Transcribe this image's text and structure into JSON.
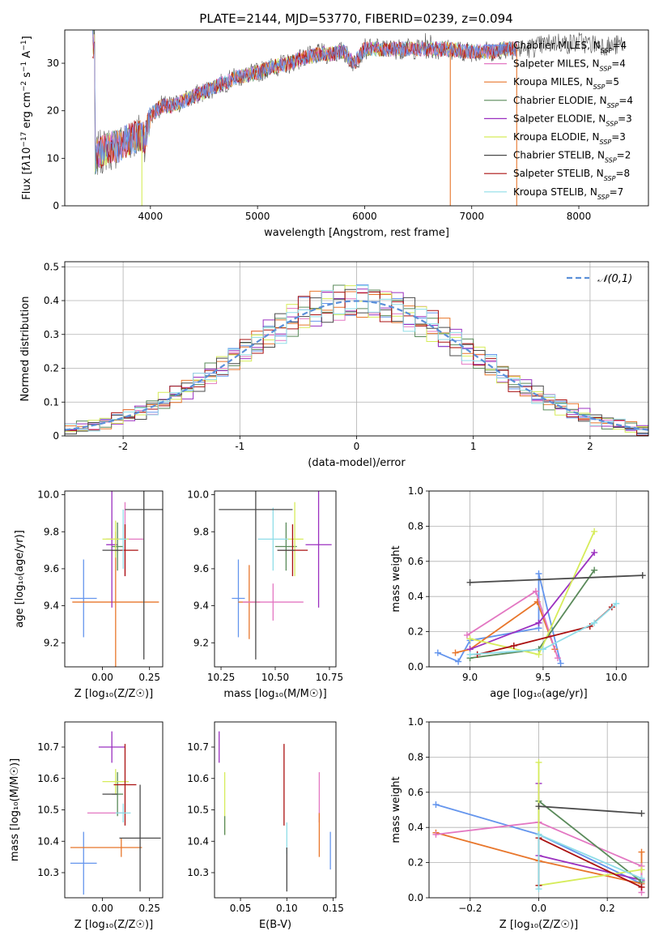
{
  "figure": {
    "title": "PLATE=2144, MJD=53770, FIBERID=0239, z=0.094",
    "colors": {
      "Chabrier MILES": "#6495ed",
      "Salpeter MILES": "#e377c2",
      "Kroupa MILES": "#e8762b",
      "Chabrier ELODIE": "#5a8a5a",
      "Salpeter ELODIE": "#9b30c0",
      "Kroupa ELODIE": "#d6ec5a",
      "Chabrier STELIB": "#4a4a4a",
      "Salpeter STELIB": "#aa1010",
      "Kroupa STELIB": "#8fdde8",
      "gauss": "#5b8fd8"
    }
  },
  "chart_data": [
    {
      "id": "spectrum",
      "type": "line",
      "xlabel": "wavelength [Angstrom, rest frame]",
      "ylabel": "Flux [f_λ 10^-17 erg cm^-2 s^-1 A^-1]",
      "xlim": [
        3200,
        8650
      ],
      "ylim": [
        0,
        37
      ],
      "xticks": [
        4000,
        5000,
        6000,
        7000,
        8000
      ],
      "yticks": [
        0,
        10,
        20,
        30
      ],
      "grid": false,
      "legend_position": "top-right",
      "legend": [
        {
          "label": "Chabrier MILES, N",
          "sub": "SSP",
          "eq": "=4",
          "color": "#6495ed"
        },
        {
          "label": "Salpeter MILES, N",
          "sub": "SSP",
          "eq": "=4",
          "color": "#e377c2"
        },
        {
          "label": "Kroupa MILES, N",
          "sub": "SSP",
          "eq": "=5",
          "color": "#e8762b"
        },
        {
          "label": "Chabrier ELODIE, N",
          "sub": "SSP",
          "eq": "=4",
          "color": "#5a8a5a"
        },
        {
          "label": "Salpeter ELODIE, N",
          "sub": "SSP",
          "eq": "=3",
          "color": "#9b30c0"
        },
        {
          "label": "Kroupa ELODIE, N",
          "sub": "SSP",
          "eq": "=3",
          "color": "#d6ec5a"
        },
        {
          "label": "Chabrier STELIB, N",
          "sub": "SSP",
          "eq": "=2",
          "color": "#4a4a4a"
        },
        {
          "label": "Salpeter STELIB, N",
          "sub": "SSP",
          "eq": "=8",
          "color": "#aa1010"
        },
        {
          "label": "Kroupa STELIB, N",
          "sub": "SSP",
          "eq": "=7",
          "color": "#8fdde8"
        }
      ],
      "envelope": [
        [
          3480,
          10
        ],
        [
          3520,
          11
        ],
        [
          3600,
          12
        ],
        [
          3700,
          12.5
        ],
        [
          3800,
          14
        ],
        [
          3900,
          15
        ],
        [
          3950,
          14
        ],
        [
          4000,
          19
        ],
        [
          4100,
          21
        ],
        [
          4200,
          21
        ],
        [
          4300,
          22
        ],
        [
          4400,
          23
        ],
        [
          4500,
          24
        ],
        [
          4600,
          25
        ],
        [
          4700,
          26
        ],
        [
          4800,
          27
        ],
        [
          4900,
          27.5
        ],
        [
          5000,
          28
        ],
        [
          5100,
          29
        ],
        [
          5200,
          29.5
        ],
        [
          5300,
          30
        ],
        [
          5400,
          31
        ],
        [
          5500,
          31.5
        ],
        [
          5600,
          32
        ],
        [
          5700,
          32
        ],
        [
          5800,
          32.5
        ],
        [
          5900,
          30
        ],
        [
          6000,
          33
        ],
        [
          6100,
          33
        ],
        [
          6200,
          33
        ],
        [
          6300,
          33
        ],
        [
          6400,
          33
        ],
        [
          6500,
          33
        ],
        [
          6600,
          33
        ],
        [
          6700,
          33
        ],
        [
          6800,
          33
        ],
        [
          6900,
          32.5
        ],
        [
          7000,
          32.5
        ],
        [
          7100,
          32.5
        ],
        [
          7200,
          32.5
        ],
        [
          7300,
          33
        ],
        [
          7400,
          33
        ],
        [
          7500,
          33
        ],
        [
          7600,
          33.5
        ],
        [
          7700,
          34
        ],
        [
          7800,
          34.5
        ],
        [
          7900,
          34
        ],
        [
          8000,
          34.5
        ],
        [
          8100,
          34
        ],
        [
          8200,
          34
        ],
        [
          8300,
          33.5
        ],
        [
          8400,
          34
        ]
      ],
      "drops": [
        {
          "x": 3920,
          "color": "#d6ec5a"
        },
        {
          "x": 6800,
          "color": "#e8762b"
        },
        {
          "x": 7420,
          "color": "#e8762b"
        }
      ]
    },
    {
      "id": "residuals",
      "type": "histogram",
      "xlabel": "(data-model)/error",
      "ylabel": "Normed distribution",
      "xlim": [
        -2.5,
        2.5
      ],
      "ylim": [
        0,
        0.515
      ],
      "xticks": [
        -2,
        -1,
        0,
        1,
        2
      ],
      "yticks": [
        0.0,
        0.1,
        0.2,
        0.3,
        0.4,
        0.5
      ],
      "grid": true,
      "legend_position": "top-right",
      "gauss_label": "𝒩(0,1)",
      "bins": 50,
      "series_colors": [
        "#6495ed",
        "#e377c2",
        "#e8762b",
        "#5a8a5a",
        "#9b30c0",
        "#d6ec5a",
        "#4a4a4a",
        "#aa1010",
        "#8fdde8"
      ]
    },
    {
      "id": "Z-age",
      "type": "errorbar",
      "xlabel": "Z [log₁₀(Z/Z☉)]",
      "ylabel": "age  [log₁₀(age/yr)]",
      "xlim": [
        -0.2,
        0.32
      ],
      "ylim": [
        9.07,
        10.02
      ],
      "xticks": [
        0.0,
        0.25
      ],
      "xticklabels": [
        "0.00",
        "0.25"
      ],
      "yticks": [
        9.2,
        9.4,
        9.6,
        9.8,
        10.0
      ],
      "yticklabels": [
        "9.2",
        "9.4",
        "9.6",
        "9.8",
        "10.0"
      ],
      "points": [
        {
          "x": -0.1,
          "y": 9.44,
          "dx": 0.07,
          "dy": 0.21,
          "color": "#6495ed"
        },
        {
          "x": 0.07,
          "y": 9.42,
          "dx": 0.23,
          "dy": 0.38,
          "color": "#e8762b"
        },
        {
          "x": 0.05,
          "y": 9.73,
          "dx": 0.03,
          "dy": 0.34,
          "color": "#9b30c0"
        },
        {
          "x": 0.12,
          "y": 9.76,
          "dx": 0.1,
          "dy": 0.2,
          "color": "#e377c2"
        },
        {
          "x": 0.08,
          "y": 9.72,
          "dx": 0.03,
          "dy": 0.13,
          "color": "#5a8a5a"
        },
        {
          "x": 0.07,
          "y": 9.76,
          "dx": 0.07,
          "dy": 0.1,
          "color": "#d6ec5a"
        },
        {
          "x": 0.12,
          "y": 9.7,
          "dx": 0.07,
          "dy": 0.14,
          "color": "#aa1010"
        },
        {
          "x": 0.11,
          "y": 9.76,
          "dx": 0.02,
          "dy": 0.16,
          "color": "#8fdde8"
        },
        {
          "x": 0.22,
          "y": 9.92,
          "dx": 0.1,
          "dy": 0.81,
          "color": "#4a4a4a"
        },
        {
          "x": 0.05,
          "y": 9.7,
          "dx": 0.05,
          "dy": 0.0,
          "color": "#4a4a4a"
        }
      ]
    },
    {
      "id": "mass-age",
      "type": "errorbar",
      "xlabel": "mass [log₁₀(M/M☉)]",
      "ylabel": "",
      "xlim": [
        10.22,
        10.78
      ],
      "ylim": [
        9.07,
        10.02
      ],
      "xticks": [
        10.25,
        10.5,
        10.75
      ],
      "xticklabels": [
        "10.25",
        "10.50",
        "10.75"
      ],
      "yticks": [
        9.2,
        9.4,
        9.6,
        9.8,
        10.0
      ],
      "yticklabels": [
        "9.2",
        "9.4",
        "9.6",
        "9.8",
        "10.0"
      ],
      "points": [
        {
          "x": 10.33,
          "y": 9.44,
          "dx": 0.03,
          "dy": 0.21,
          "color": "#6495ed"
        },
        {
          "x": 10.38,
          "y": 9.42,
          "dx": 0.05,
          "dy": 0.2,
          "color": "#e8762b"
        },
        {
          "x": 10.49,
          "y": 9.42,
          "dx": 0.14,
          "dy": 0.1,
          "color": "#e377c2"
        },
        {
          "x": 10.7,
          "y": 9.73,
          "dx": 0.06,
          "dy": 0.34,
          "color": "#9b30c0"
        },
        {
          "x": 10.55,
          "y": 9.72,
          "dx": 0.05,
          "dy": 0.13,
          "color": "#5a8a5a"
        },
        {
          "x": 10.59,
          "y": 9.76,
          "dx": 0.04,
          "dy": 0.2,
          "color": "#d6ec5a"
        },
        {
          "x": 10.58,
          "y": 9.7,
          "dx": 0.07,
          "dy": 0.14,
          "color": "#aa1010"
        },
        {
          "x": 10.49,
          "y": 9.76,
          "dx": 0.07,
          "dy": 0.17,
          "color": "#8fdde8"
        },
        {
          "x": 10.41,
          "y": 9.92,
          "dx": 0.17,
          "dy": 0.81,
          "color": "#4a4a4a"
        },
        {
          "x": 10.55,
          "y": 9.7,
          "dx": 0.04,
          "dy": 0.0,
          "color": "#4a4a4a"
        }
      ]
    },
    {
      "id": "age-weight",
      "type": "line",
      "xlabel": "age  [log₁₀(age/yr)]",
      "ylabel": "mass weight",
      "xlim": [
        8.72,
        10.22
      ],
      "ylim": [
        0,
        1.0
      ],
      "xticks": [
        9.0,
        9.5,
        10.0
      ],
      "xticklabels": [
        "9.0",
        "9.5",
        "10.0"
      ],
      "yticks": [
        0.0,
        0.2,
        0.4,
        0.6,
        0.8,
        1.0
      ],
      "yticklabels": [
        "0.0",
        "0.2",
        "0.4",
        "0.6",
        "0.8",
        "1.0"
      ],
      "grid": true,
      "series": [
        {
          "color": "#6495ed",
          "x": [
            8.78,
            8.92,
            9.0,
            9.47,
            9.47,
            9.62
          ],
          "y": [
            0.08,
            0.03,
            0.15,
            0.22,
            0.53,
            0.02
          ]
        },
        {
          "color": "#e8762b",
          "x": [
            8.9,
            9.0,
            9.46,
            9.58
          ],
          "y": [
            0.08,
            0.1,
            0.37,
            0.1
          ]
        },
        {
          "color": "#e377c2",
          "x": [
            8.98,
            9.45,
            9.6
          ],
          "y": [
            0.18,
            0.43,
            0.05
          ]
        },
        {
          "color": "#9b30c0",
          "x": [
            9.0,
            9.47,
            9.85
          ],
          "y": [
            0.1,
            0.25,
            0.65
          ]
        },
        {
          "color": "#5a8a5a",
          "x": [
            9.0,
            9.47,
            9.85
          ],
          "y": [
            0.05,
            0.1,
            0.55
          ]
        },
        {
          "color": "#d6ec5a",
          "x": [
            9.0,
            9.47,
            9.85
          ],
          "y": [
            0.16,
            0.07,
            0.77
          ]
        },
        {
          "color": "#4a4a4a",
          "x": [
            9.0,
            10.18
          ],
          "y": [
            0.48,
            0.52
          ]
        },
        {
          "color": "#aa1010",
          "x": [
            9.05,
            9.3,
            9.82,
            9.97
          ],
          "y": [
            0.07,
            0.12,
            0.23,
            0.34
          ]
        },
        {
          "color": "#8fdde8",
          "x": [
            9.0,
            9.5,
            9.85,
            10.0
          ],
          "y": [
            0.07,
            0.1,
            0.25,
            0.36
          ]
        }
      ]
    },
    {
      "id": "Z-mass",
      "type": "errorbar",
      "xlabel": "Z [log₁₀(Z/Z☉)]",
      "ylabel": "mass [log₁₀(M/M☉)]",
      "xlim": [
        -0.2,
        0.32
      ],
      "ylim": [
        10.22,
        10.78
      ],
      "xticks": [
        0.0,
        0.25
      ],
      "xticklabels": [
        "0.00",
        "0.25"
      ],
      "yticks": [
        10.3,
        10.4,
        10.5,
        10.6,
        10.7
      ],
      "yticklabels": [
        "10.3",
        "10.4",
        "10.5",
        "10.6",
        "10.7"
      ],
      "points": [
        {
          "x": -0.1,
          "y": 10.33,
          "dx": 0.07,
          "dy": 0.1,
          "color": "#6495ed"
        },
        {
          "x": 0.02,
          "y": 10.38,
          "dx": 0.19,
          "dy": 0.0,
          "color": "#e8762b"
        },
        {
          "x": 0.1,
          "y": 10.38,
          "dx": 0.0,
          "dy": 0.03,
          "color": "#e8762b"
        },
        {
          "x": 0.02,
          "y": 10.49,
          "dx": 0.1,
          "dy": 0.0,
          "color": "#e377c2"
        },
        {
          "x": 0.05,
          "y": 10.7,
          "dx": 0.07,
          "dy": 0.05,
          "color": "#9b30c0"
        },
        {
          "x": 0.08,
          "y": 10.55,
          "dx": 0.03,
          "dy": 0.07,
          "color": "#5a8a5a"
        },
        {
          "x": 0.07,
          "y": 10.59,
          "dx": 0.07,
          "dy": 0.04,
          "color": "#d6ec5a"
        },
        {
          "x": 0.12,
          "y": 10.58,
          "dx": 0.06,
          "dy": 0.13,
          "color": "#aa1010"
        },
        {
          "x": 0.11,
          "y": 10.49,
          "dx": 0.04,
          "dy": 0.03,
          "color": "#8fdde8"
        },
        {
          "x": 0.2,
          "y": 10.41,
          "dx": 0.11,
          "dy": 0.17,
          "color": "#4a4a4a"
        },
        {
          "x": 0.04,
          "y": 10.55,
          "dx": 0.04,
          "dy": 0.0,
          "color": "#4a4a4a"
        }
      ]
    },
    {
      "id": "ebv-mass",
      "type": "errorbar",
      "xlabel": "E(B-V)",
      "ylabel": "",
      "xlim": [
        0.022,
        0.153
      ],
      "ylim": [
        10.22,
        10.78
      ],
      "xticks": [
        0.05,
        0.1,
        0.15
      ],
      "xticklabels": [
        "0.05",
        "0.10",
        "0.15"
      ],
      "yticks": [
        10.3,
        10.4,
        10.5,
        10.6,
        10.7
      ],
      "yticklabels": [
        "10.3",
        "10.4",
        "10.5",
        "10.6",
        "10.7"
      ],
      "points": [
        {
          "x": 0.027,
          "y": 10.7,
          "dx": 0.0,
          "dy": 0.05,
          "color": "#9b30c0"
        },
        {
          "x": 0.033,
          "y": 10.52,
          "dx": 0.0,
          "dy": 0.1,
          "color": "#d6ec5a"
        },
        {
          "x": 0.033,
          "y": 10.45,
          "dx": 0.0,
          "dy": 0.03,
          "color": "#5a8a5a"
        },
        {
          "x": 0.097,
          "y": 10.58,
          "dx": 0.0,
          "dy": 0.13,
          "color": "#aa1010"
        },
        {
          "x": 0.1,
          "y": 10.41,
          "dx": 0.0,
          "dy": 0.05,
          "color": "#8fdde8"
        },
        {
          "x": 0.1,
          "y": 10.31,
          "dx": 0.0,
          "dy": 0.07,
          "color": "#4a4a4a"
        },
        {
          "x": 0.135,
          "y": 10.54,
          "dx": 0.0,
          "dy": 0.08,
          "color": "#e377c2"
        },
        {
          "x": 0.135,
          "y": 10.42,
          "dx": 0.0,
          "dy": 0.07,
          "color": "#e8762b"
        },
        {
          "x": 0.147,
          "y": 10.37,
          "dx": 0.0,
          "dy": 0.06,
          "color": "#6495ed"
        }
      ]
    },
    {
      "id": "Z-weight",
      "type": "line",
      "xlabel": "Z [log₁₀(Z/Z☉)]",
      "ylabel": "mass weight",
      "xlim": [
        -0.32,
        0.32
      ],
      "ylim": [
        0,
        1.0
      ],
      "xticks": [
        -0.2,
        0.0,
        0.2
      ],
      "xticklabels": [
        "−0.2",
        "0.0",
        "0.2"
      ],
      "yticks": [
        0.0,
        0.2,
        0.4,
        0.6,
        0.8,
        1.0
      ],
      "yticklabels": [
        "0.0",
        "0.2",
        "0.4",
        "0.6",
        "0.8",
        "1.0"
      ],
      "grid": true,
      "series": [
        {
          "color": "#6495ed",
          "x": [
            -0.3,
            0.0,
            0.3,
            0.3
          ],
          "y": [
            0.53,
            0.36,
            0.08,
            0.1
          ]
        },
        {
          "color": "#e8762b",
          "x": [
            -0.3,
            0.0,
            0.3,
            0.3
          ],
          "y": [
            0.37,
            0.21,
            0.08,
            0.26
          ]
        },
        {
          "color": "#e377c2",
          "x": [
            -0.3,
            0.0,
            0.3,
            0.3
          ],
          "y": [
            0.36,
            0.43,
            0.18,
            0.03
          ]
        },
        {
          "color": "#9b30c0",
          "x": [
            0.0,
            0.0,
            0.3
          ],
          "y": [
            0.65,
            0.24,
            0.1
          ]
        },
        {
          "color": "#5a8a5a",
          "x": [
            0.0,
            0.0,
            0.3
          ],
          "y": [
            0.07,
            0.55,
            0.09
          ]
        },
        {
          "color": "#d6ec5a",
          "x": [
            0.0,
            0.0,
            0.3
          ],
          "y": [
            0.77,
            0.07,
            0.16
          ]
        },
        {
          "color": "#4a4a4a",
          "x": [
            0.0,
            0.3
          ],
          "y": [
            0.52,
            0.48
          ]
        },
        {
          "color": "#aa1010",
          "x": [
            0.0,
            0.0,
            0.3
          ],
          "y": [
            0.07,
            0.34,
            0.06
          ]
        },
        {
          "color": "#8fdde8",
          "x": [
            0.0,
            0.0,
            0.3
          ],
          "y": [
            0.05,
            0.36,
            0.11
          ]
        }
      ]
    }
  ]
}
